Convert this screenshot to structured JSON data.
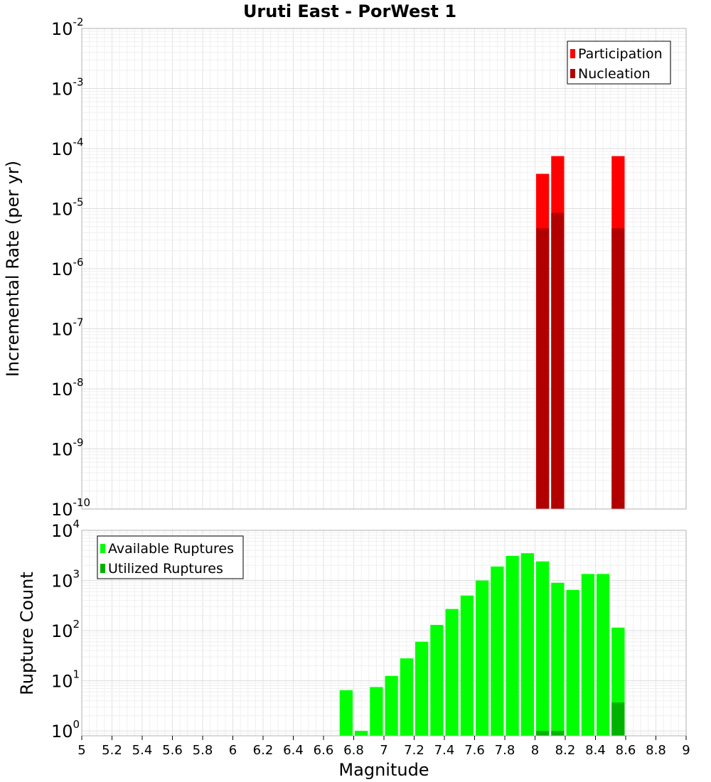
{
  "title": "Uruti East - PorWest 1",
  "xlabel": "Magnitude",
  "x_ticks": [
    "5",
    "5.2",
    "5.4",
    "5.6",
    "5.8",
    "6",
    "6.2",
    "6.4",
    "6.6",
    "6.8",
    "7",
    "7.2",
    "7.4",
    "7.6",
    "7.8",
    "8",
    "8.2",
    "8.4",
    "8.6",
    "8.8",
    "9"
  ],
  "chart_data": [
    {
      "type": "bar",
      "ylabel": "Incremental Rate (per yr)",
      "y_scale": "log",
      "xlim": [
        5,
        9
      ],
      "ylim": [
        1e-10,
        0.01
      ],
      "y_tick_exponents": [
        "-10",
        "-9",
        "-8",
        "-7",
        "-6",
        "-5",
        "-4",
        "-3",
        "-2"
      ],
      "grid": true,
      "legend_position": "top-right",
      "colors": {
        "Participation": "#ff0000",
        "Nucleation": "#b20000"
      },
      "series": [
        {
          "name": "Participation",
          "x": [
            8.05,
            8.15,
            8.55
          ],
          "values": [
            3.8e-05,
            7.5e-05,
            7.5e-05
          ]
        },
        {
          "name": "Nucleation",
          "x": [
            8.05,
            8.15,
            8.55
          ],
          "values": [
            4.7e-06,
            8.5e-06,
            4.7e-06
          ]
        }
      ]
    },
    {
      "type": "bar",
      "ylabel": "Rupture Count",
      "y_scale": "log",
      "xlim": [
        5,
        9
      ],
      "ylim": [
        0.8,
        10000
      ],
      "y_tick_exponents": [
        "0",
        "1",
        "2",
        "3",
        "4"
      ],
      "grid": true,
      "legend_position": "top-left",
      "colors": {
        "Available Ruptures": "#00ff00",
        "Utilized Ruptures": "#00b200"
      },
      "series": [
        {
          "name": "Available Ruptures",
          "x": [
            6.75,
            6.85,
            6.95,
            7.05,
            7.15,
            7.25,
            7.35,
            7.45,
            7.55,
            7.65,
            7.75,
            7.85,
            7.95,
            8.05,
            8.15,
            8.25,
            8.35,
            8.45,
            8.55
          ],
          "values": [
            6.5,
            1,
            7.5,
            12.5,
            28,
            60,
            130,
            270,
            500,
            1000,
            1900,
            3100,
            3500,
            2400,
            900,
            650,
            1350,
            1350,
            115
          ]
        },
        {
          "name": "Utilized Ruptures",
          "x": [
            8.05,
            8.15,
            8.55
          ],
          "values": [
            1,
            1,
            3.7
          ]
        }
      ]
    }
  ]
}
